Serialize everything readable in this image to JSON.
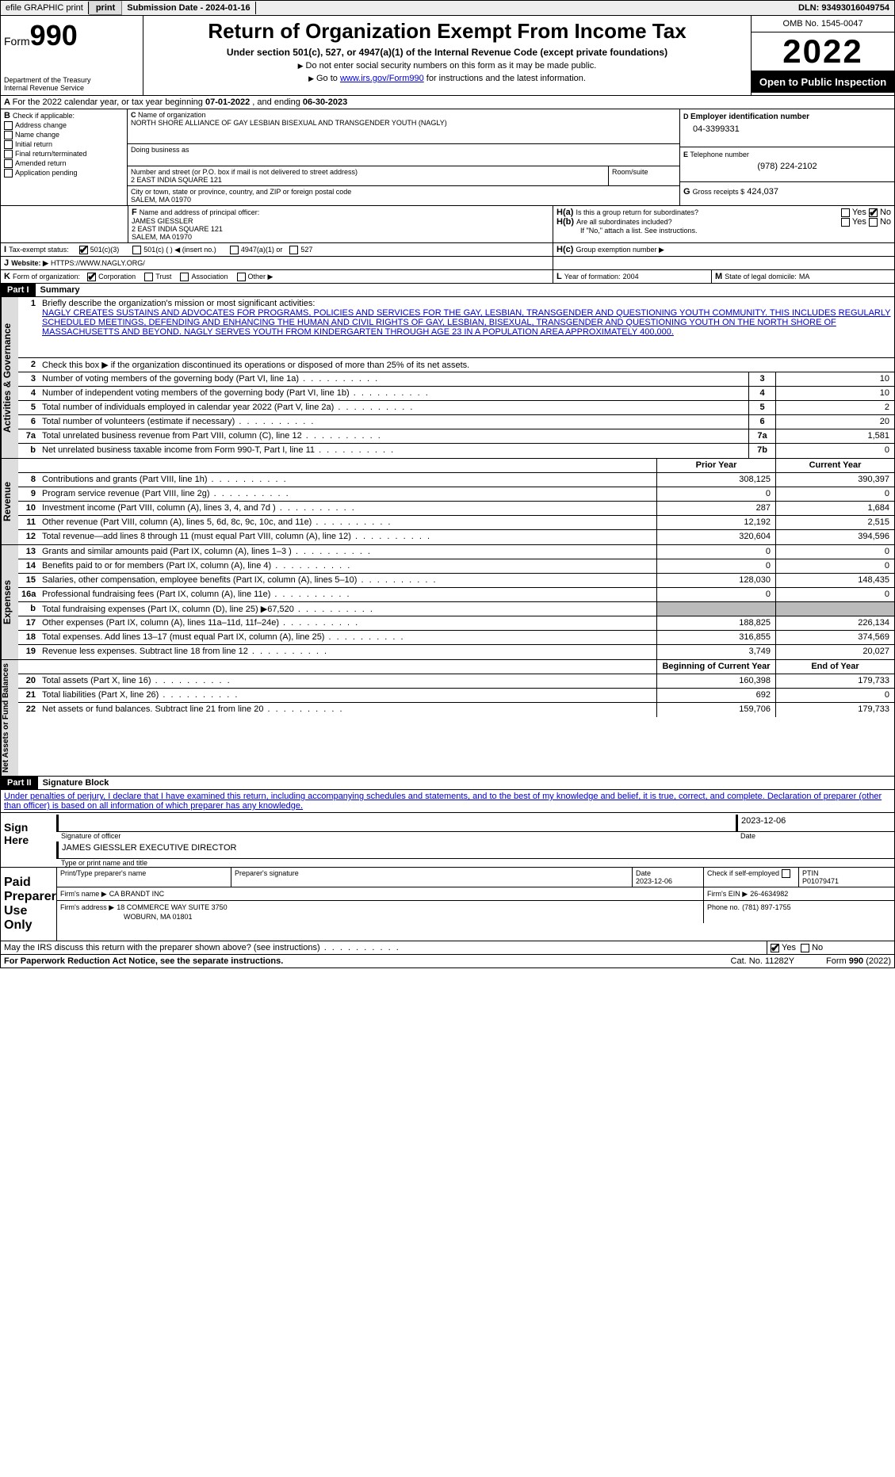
{
  "topbar": {
    "efile": "efile GRAPHIC print",
    "subdate_label": "Submission Date - ",
    "subdate": "2024-01-16",
    "dln_label": "DLN: ",
    "dln": "93493016049754"
  },
  "header": {
    "form_prefix": "Form",
    "form_num": "990",
    "dept": "Department of the Treasury",
    "irs": "Internal Revenue Service",
    "title": "Return of Organization Exempt From Income Tax",
    "sub": "Under section 501(c), 527, or 4947(a)(1) of the Internal Revenue Code (except private foundations)",
    "note1": "Do not enter social security numbers on this form as it may be made public.",
    "note2a": "Go to ",
    "note2_link": "www.irs.gov/Form990",
    "note2b": " for instructions and the latest information.",
    "omb": "OMB No. 1545-0047",
    "year": "2022",
    "inspect": "Open to Public Inspection"
  },
  "A": {
    "text_a": "For the 2022 calendar year, or tax year beginning ",
    "begin": "07-01-2022",
    "text_b": " , and ending ",
    "end": "06-30-2023"
  },
  "B": {
    "label": "Check if applicable:",
    "items": [
      "Address change",
      "Name change",
      "Initial return",
      "Final return/terminated",
      "Amended return",
      "Application pending"
    ]
  },
  "C": {
    "name_label": "Name of organization",
    "name": "NORTH SHORE ALLIANCE OF GAY LESBIAN BISEXUAL AND TRANSGENDER YOUTH (NAGLY)",
    "dba_label": "Doing business as",
    "dba": "",
    "street_label": "Number and street (or P.O. box if mail is not delivered to street address)",
    "street": "2 EAST INDIA SQUARE 121",
    "room_label": "Room/suite",
    "city_label": "City or town, state or province, country, and ZIP or foreign postal code",
    "city": "SALEM, MA  01970"
  },
  "D": {
    "label": "Employer identification number",
    "val": "04-3399331"
  },
  "E": {
    "label": "Telephone number",
    "val": "(978) 224-2102"
  },
  "G": {
    "label": "Gross receipts $",
    "val": "424,037"
  },
  "F": {
    "label": "Name and address of principal officer:",
    "name": "JAMES GIESSLER",
    "addr1": "2 EAST INDIA SQUARE 121",
    "addr2": "SALEM, MA  01970"
  },
  "H": {
    "a": "Is this a group return for subordinates?",
    "b": "Are all subordinates included?",
    "bnote": "If \"No,\" attach a list. See instructions.",
    "c": "Group exemption number ▶",
    "yes": "Yes",
    "no": "No"
  },
  "I": {
    "label": "Tax-exempt status:",
    "opts": [
      "501(c)(3)",
      "501(c) (  ) ◀ (insert no.)",
      "4947(a)(1) or",
      "527"
    ]
  },
  "J": {
    "label": "Website: ▶",
    "val": "HTTPS://WWW.NAGLY.ORG/"
  },
  "K": {
    "label": "Form of organization:",
    "opts": [
      "Corporation",
      "Trust",
      "Association",
      "Other ▶"
    ]
  },
  "L": {
    "label": "Year of formation:",
    "val": "2004"
  },
  "M": {
    "label": "State of legal domicile:",
    "val": "MA"
  },
  "part1": {
    "tag": "Part I",
    "title": "Summary"
  },
  "summary": {
    "l1_label": "Briefly describe the organization's mission or most significant activities:",
    "l1_text": "NAGLY CREATES SUSTAINS AND ADVOCATES FOR PROGRAMS, POLICIES AND SERVICES FOR THE GAY, LESBIAN, TRANSGENDER AND QUESTIONING YOUTH COMMUNITY. THIS INCLUDES REGULARLY SCHEDULED MEETINGS, DEFENDING AND ENHANCING THE HUMAN AND CIVIL RIGHTS OF GAY, LESBIAN, BISEXUAL, TRANSGENDER AND QUESTIONING YOUTH ON THE NORTH SHORE OF MASSACHUSETTS AND BEYOND. NAGLY SERVES YOUTH FROM KINDERGARTEN THROUGH AGE 23 IN A POPULATION AREA APPROXIMATELY 400,000.",
    "l2": "Check this box ▶       if the organization discontinued its operations or disposed of more than 25% of its net assets.",
    "rows_gov": [
      {
        "n": "3",
        "d": "Number of voting members of the governing body (Part VI, line 1a)",
        "box": "3",
        "v": "10"
      },
      {
        "n": "4",
        "d": "Number of independent voting members of the governing body (Part VI, line 1b)",
        "box": "4",
        "v": "10"
      },
      {
        "n": "5",
        "d": "Total number of individuals employed in calendar year 2022 (Part V, line 2a)",
        "box": "5",
        "v": "2"
      },
      {
        "n": "6",
        "d": "Total number of volunteers (estimate if necessary)",
        "box": "6",
        "v": "20"
      },
      {
        "n": "7a",
        "d": "Total unrelated business revenue from Part VIII, column (C), line 12",
        "box": "7a",
        "v": "1,581"
      },
      {
        "n": "b",
        "d": "Net unrelated business taxable income from Form 990-T, Part I, line 11",
        "box": "7b",
        "v": "0"
      }
    ],
    "col_prior": "Prior Year",
    "col_curr": "Current Year",
    "rev": [
      {
        "n": "8",
        "d": "Contributions and grants (Part VIII, line 1h)",
        "p": "308,125",
        "c": "390,397"
      },
      {
        "n": "9",
        "d": "Program service revenue (Part VIII, line 2g)",
        "p": "0",
        "c": "0"
      },
      {
        "n": "10",
        "d": "Investment income (Part VIII, column (A), lines 3, 4, and 7d )",
        "p": "287",
        "c": "1,684"
      },
      {
        "n": "11",
        "d": "Other revenue (Part VIII, column (A), lines 5, 6d, 8c, 9c, 10c, and 11e)",
        "p": "12,192",
        "c": "2,515"
      },
      {
        "n": "12",
        "d": "Total revenue—add lines 8 through 11 (must equal Part VIII, column (A), line 12)",
        "p": "320,604",
        "c": "394,596"
      }
    ],
    "exp": [
      {
        "n": "13",
        "d": "Grants and similar amounts paid (Part IX, column (A), lines 1–3 )",
        "p": "0",
        "c": "0"
      },
      {
        "n": "14",
        "d": "Benefits paid to or for members (Part IX, column (A), line 4)",
        "p": "0",
        "c": "0"
      },
      {
        "n": "15",
        "d": "Salaries, other compensation, employee benefits (Part IX, column (A), lines 5–10)",
        "p": "128,030",
        "c": "148,435"
      },
      {
        "n": "16a",
        "d": "Professional fundraising fees (Part IX, column (A), line 11e)",
        "p": "0",
        "c": "0"
      },
      {
        "n": "b",
        "d": "Total fundraising expenses (Part IX, column (D), line 25) ▶67,520",
        "p": "__shade__",
        "c": "__shade__"
      },
      {
        "n": "17",
        "d": "Other expenses (Part IX, column (A), lines 11a–11d, 11f–24e)",
        "p": "188,825",
        "c": "226,134"
      },
      {
        "n": "18",
        "d": "Total expenses. Add lines 13–17 (must equal Part IX, column (A), line 25)",
        "p": "316,855",
        "c": "374,569"
      },
      {
        "n": "19",
        "d": "Revenue less expenses. Subtract line 18 from line 12",
        "p": "3,749",
        "c": "20,027"
      }
    ],
    "col_beg": "Beginning of Current Year",
    "col_end": "End of Year",
    "net": [
      {
        "n": "20",
        "d": "Total assets (Part X, line 16)",
        "p": "160,398",
        "c": "179,733"
      },
      {
        "n": "21",
        "d": "Total liabilities (Part X, line 26)",
        "p": "692",
        "c": "0"
      },
      {
        "n": "22",
        "d": "Net assets or fund balances. Subtract line 21 from line 20",
        "p": "159,706",
        "c": "179,733"
      }
    ],
    "side_gov": "Activities & Governance",
    "side_rev": "Revenue",
    "side_exp": "Expenses",
    "side_net": "Net Assets or Fund Balances"
  },
  "part2": {
    "tag": "Part II",
    "title": "Signature Block"
  },
  "sig": {
    "decl": "Under penalties of perjury, I declare that I have examined this return, including accompanying schedules and statements, and to the best of my knowledge and belief, it is true, correct, and complete. Declaration of preparer (other than officer) is based on all information of which preparer has any knowledge.",
    "sign_here": "Sign Here",
    "sig_of_off": "Signature of officer",
    "date": "Date",
    "date_val": "2023-12-06",
    "name_title": "JAMES GIESSLER  EXECUTIVE DIRECTOR",
    "name_title_lbl": "Type or print name and title",
    "paid": "Paid Preparer Use Only",
    "pp_name_lbl": "Print/Type preparer's name",
    "pp_sig_lbl": "Preparer's signature",
    "pp_date_lbl": "Date",
    "pp_date": "2023-12-06",
    "pp_self": "Check        if self-employed",
    "ptin_lbl": "PTIN",
    "ptin": "P01079471",
    "firm_name_lbl": "Firm's name    ▶",
    "firm_name": "CA BRANDT INC",
    "firm_ein_lbl": "Firm's EIN ▶",
    "firm_ein": "26-4634982",
    "firm_addr_lbl": "Firm's address ▶",
    "firm_addr1": "18 COMMERCE WAY SUITE 3750",
    "firm_addr2": "WOBURN, MA  01801",
    "phone_lbl": "Phone no.",
    "phone": "(781) 897-1755",
    "may_irs": "May the IRS discuss this return with the preparer shown above? (see instructions)"
  },
  "footer": {
    "pra": "For Paperwork Reduction Act Notice, see the separate instructions.",
    "cat": "Cat. No. 11282Y",
    "form": "Form 990 (2022)"
  }
}
